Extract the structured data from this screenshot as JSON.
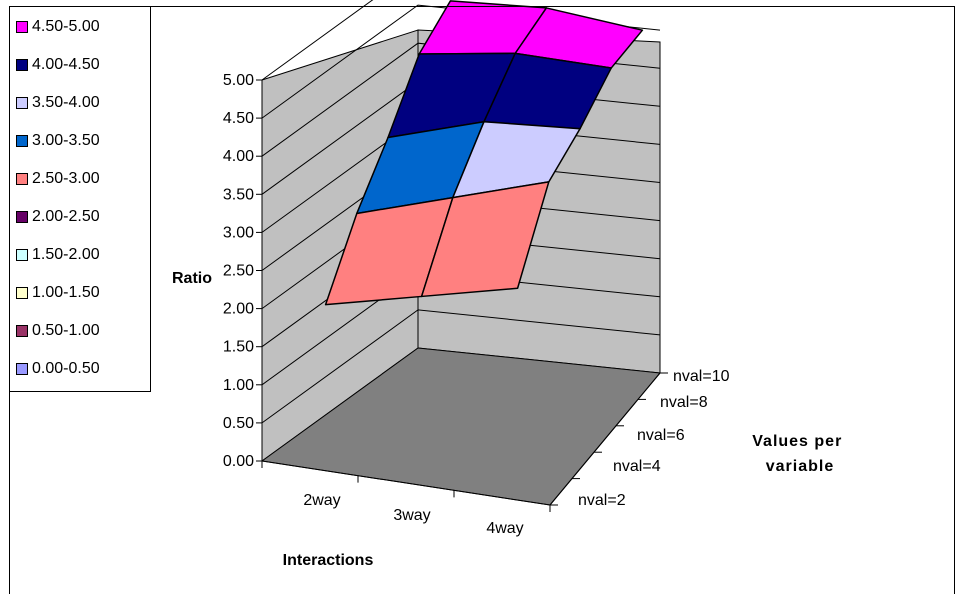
{
  "chart_data": {
    "type": "surface",
    "z_axis_label": "Ratio",
    "x_axis_label": "Interactions",
    "y_axis_label": "Values per variable",
    "x_categories": [
      "2way",
      "3way",
      "4way"
    ],
    "y_categories": [
      "nval=2",
      "nval=4",
      "nval=6",
      "nval=8",
      "nval=10"
    ],
    "z_ticks": [
      "0.00",
      "0.50",
      "1.00",
      "1.50",
      "2.00",
      "2.50",
      "3.00",
      "3.50",
      "4.00",
      "4.50",
      "5.00"
    ],
    "zlim": [
      0,
      5
    ],
    "values": [
      [
        2.0,
        2.3,
        2.6
      ],
      [
        2.9,
        3.3,
        3.7
      ],
      [
        3.6,
        4.0,
        4.1
      ],
      [
        4.4,
        4.6,
        4.6
      ],
      [
        4.8,
        4.9,
        4.8
      ]
    ],
    "legend": {
      "position": "left",
      "entries": [
        {
          "label": "4.50-5.00",
          "color": "#FF00FF"
        },
        {
          "label": "4.00-4.50",
          "color": "#000080"
        },
        {
          "label": "3.50-4.00",
          "color": "#CCCCFF"
        },
        {
          "label": "3.00-3.50",
          "color": "#0066CC"
        },
        {
          "label": "2.50-3.00",
          "color": "#FF8080"
        },
        {
          "label": "2.00-2.50",
          "color": "#660066"
        },
        {
          "label": "1.50-2.00",
          "color": "#CCFFFF"
        },
        {
          "label": "1.00-1.50",
          "color": "#FFFFCC"
        },
        {
          "label": "0.50-1.00",
          "color": "#993366"
        },
        {
          "label": "0.00-0.50",
          "color": "#9999FF"
        }
      ]
    },
    "colors": {
      "walls": "#C0C0C0",
      "floor": "#808080",
      "gridlines": "#000000"
    }
  }
}
